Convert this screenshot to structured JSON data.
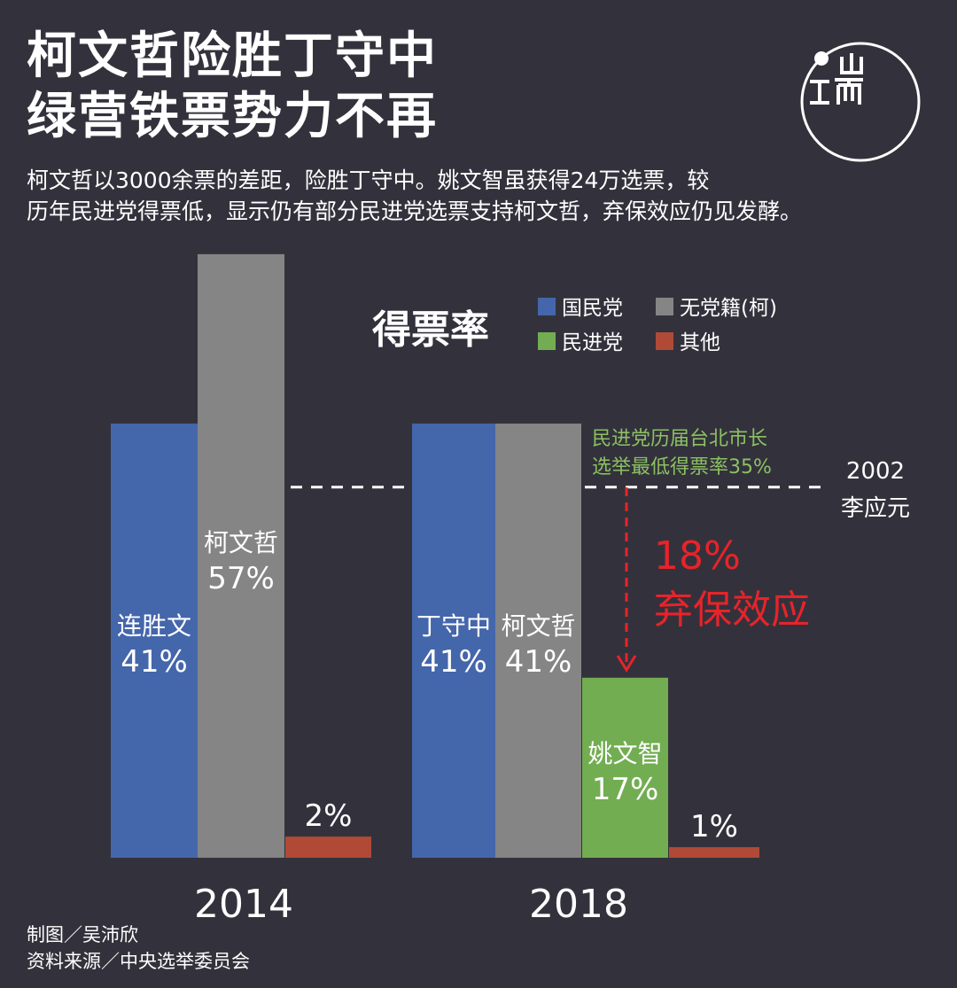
{
  "header": {
    "title_line1": "柯文哲险胜丁守中",
    "title_line2": "绿营铁票势力不再",
    "subtitle_line1": "柯文哲以3000余票的差距，险胜丁守中。姚文智虽获得24万选票，较",
    "subtitle_line2": "历年民进党得票低，显示仍有部分民进党选票支持柯文哲，弃保效应仍见发酵。"
  },
  "logo": {
    "icon": "theinitium-circle-logo",
    "text": "端"
  },
  "chart_data": {
    "type": "bar",
    "title": "得票率",
    "unit": "%",
    "ylim": [
      0,
      60
    ],
    "grid": false,
    "legend_position": "top-right",
    "legend": [
      {
        "name": "国民党",
        "color": "#4466ab"
      },
      {
        "name": "无党籍(柯)",
        "color": "#858585"
      },
      {
        "name": "民进党",
        "color": "#72ad52"
      },
      {
        "name": "其他",
        "color": "#b04a36"
      }
    ],
    "groups": [
      {
        "year": "2014",
        "bars": [
          {
            "party": "国民党",
            "candidate": "连胜文",
            "value": 41,
            "label": "41%"
          },
          {
            "party": "无党籍(柯)",
            "candidate": "柯文哲",
            "value": 57,
            "label": "57%"
          },
          {
            "party": "其他",
            "candidate": "",
            "value": 2,
            "label": "2%"
          }
        ]
      },
      {
        "year": "2018",
        "bars": [
          {
            "party": "国民党",
            "candidate": "丁守中",
            "value": 41,
            "label": "41%"
          },
          {
            "party": "无党籍(柯)",
            "candidate": "柯文哲",
            "value": 41,
            "label": "41%"
          },
          {
            "party": "民进党",
            "candidate": "姚文智",
            "value": 17,
            "label": "17%"
          },
          {
            "party": "其他",
            "candidate": "",
            "value": 1,
            "label": "1%"
          }
        ]
      }
    ],
    "reference_line": {
      "value": 35,
      "note_line1": "民进党历届台北市长",
      "note_line2": "选举最低得票率35%",
      "year_label": "2002",
      "name_label": "李应元"
    },
    "annotation": {
      "value_text": "18%",
      "text": "弃保效应",
      "color": "#e8232a"
    }
  },
  "credits": {
    "line1": "制图／吴沛欣",
    "line2": "资料来源／中央选举委员会"
  }
}
